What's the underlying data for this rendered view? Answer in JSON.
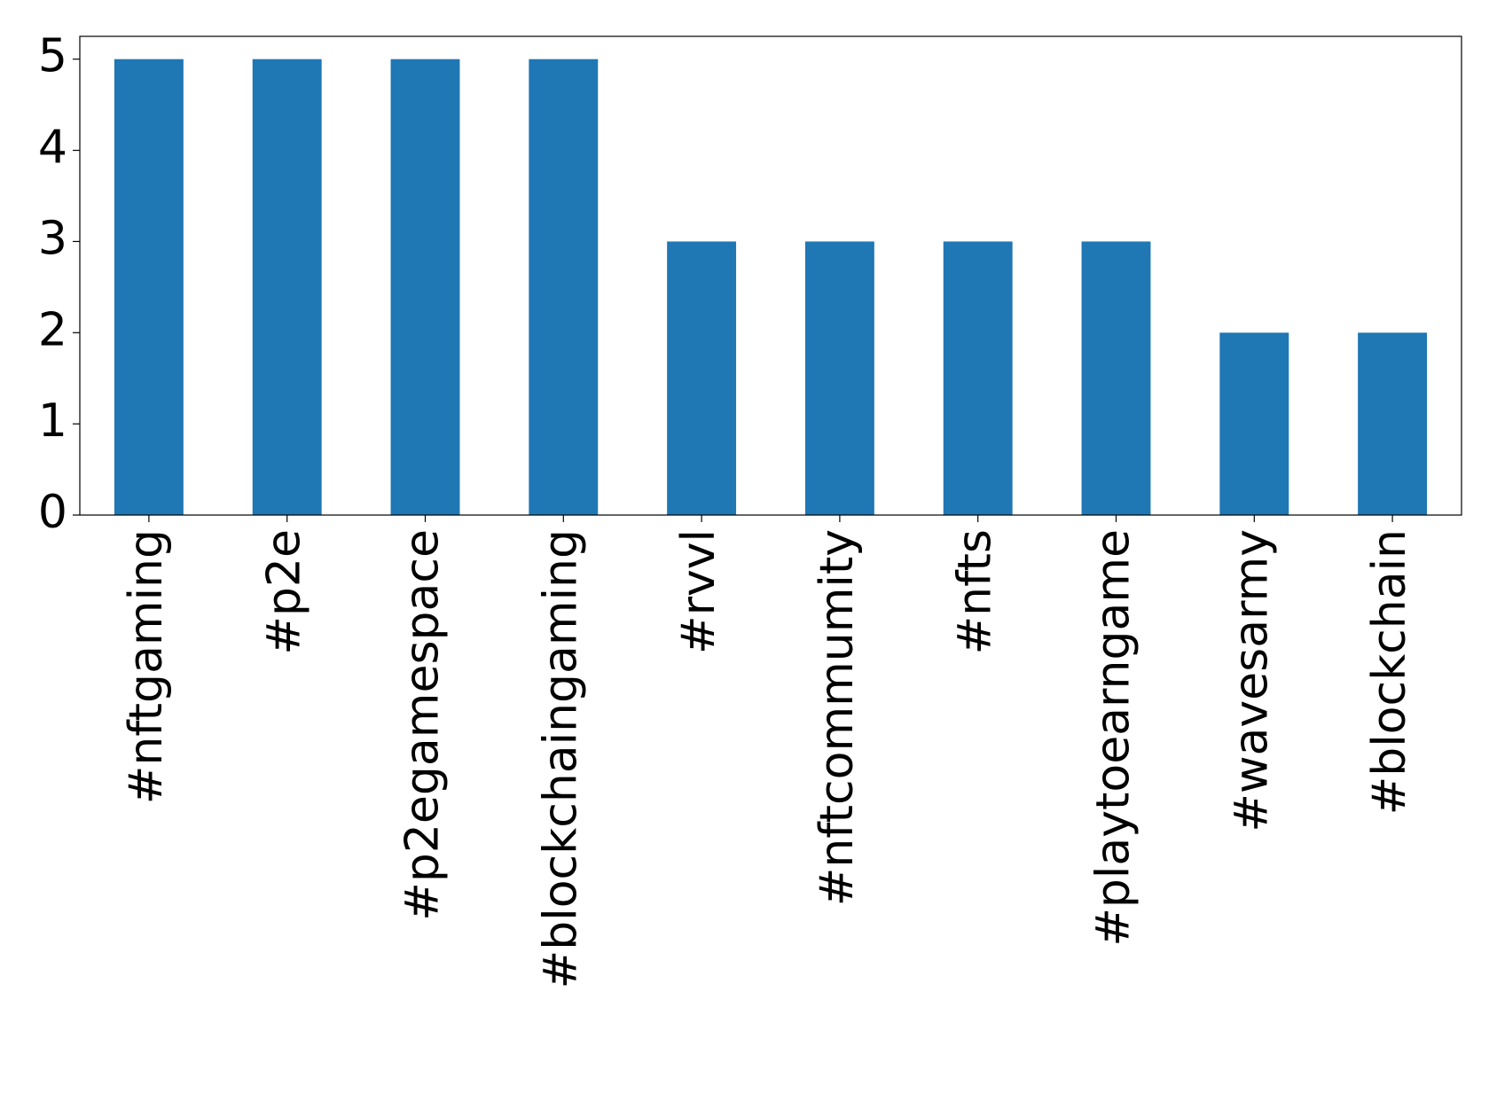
{
  "chart_data": {
    "type": "bar",
    "categories": [
      "#nftgaming",
      "#p2e",
      "#p2egamespace",
      "#blockchaingaming",
      "#rvvl",
      "#nftcommumity",
      "#nfts",
      "#playtoearngame",
      "#wavesarmy",
      "#blockchain"
    ],
    "values": [
      5,
      5,
      5,
      5,
      3,
      3,
      3,
      3,
      2,
      2
    ],
    "color": "#1f77b4",
    "ylim": [
      0,
      5.25
    ],
    "yticks": [
      0,
      1,
      2,
      3,
      4,
      5
    ],
    "grid": false
  }
}
